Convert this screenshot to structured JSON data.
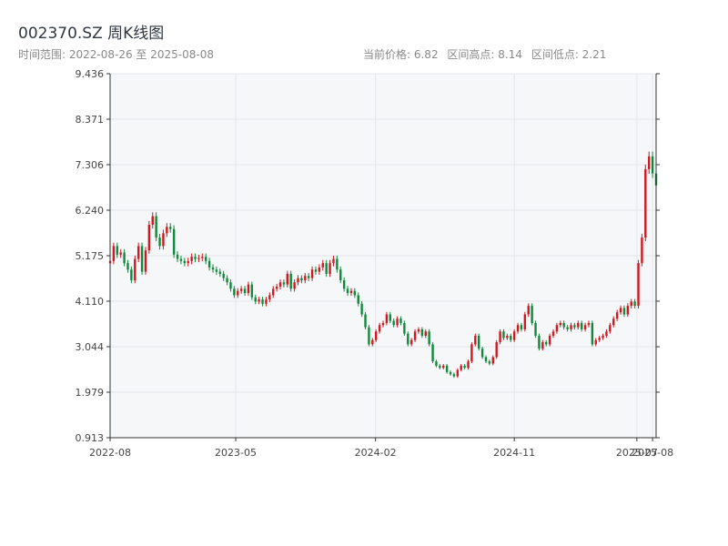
{
  "header": {
    "title": "002370.SZ 周K线图",
    "range_label": "时间范围: 2022-08-26 至 2025-08-08",
    "current_price": "当前价格: 6.82",
    "range_high": "区间高点: 8.14",
    "range_low": "区间低点: 2.21"
  },
  "colors": {
    "up": "#d0191f",
    "down": "#0f8a3c",
    "plot_bg": "#f6f7f9",
    "grid": "#e3e6ea",
    "axis": "#333333"
  },
  "chart_data": {
    "type": "candlestick",
    "title": "002370.SZ 周K线图",
    "ylim": [
      0.913,
      9.436
    ],
    "yticks": [
      "0.913",
      "1.979",
      "3.044",
      "4.110",
      "5.175",
      "6.240",
      "7.306",
      "8.371",
      "9.436"
    ],
    "xlim": [
      "2022-08-26",
      "2025-08-08"
    ],
    "xticks": [
      {
        "date": "2022-08-01",
        "label": "2022-08"
      },
      {
        "date": "2023-05-01",
        "label": "2023-05"
      },
      {
        "date": "2024-02-01",
        "label": "2024-02"
      },
      {
        "date": "2024-11-01",
        "label": "2024-11"
      },
      {
        "date": "2025-07-01",
        "label": "2025-07"
      },
      {
        "date": "2025-08-01",
        "label": "2025-08"
      }
    ],
    "grid": true,
    "points": [
      {
        "d": "2022-08-26",
        "c": 5.05
      },
      {
        "d": "2022-09-02",
        "c": 5.4
      },
      {
        "d": "2022-09-09",
        "c": 5.2
      },
      {
        "d": "2022-09-16",
        "c": 5.25
      },
      {
        "d": "2022-09-23",
        "c": 5.0
      },
      {
        "d": "2022-09-30",
        "c": 4.85
      },
      {
        "d": "2022-10-07",
        "c": 4.6
      },
      {
        "d": "2022-10-14",
        "c": 5.1
      },
      {
        "d": "2022-10-21",
        "c": 5.4
      },
      {
        "d": "2022-10-28",
        "c": 4.8
      },
      {
        "d": "2022-11-04",
        "c": 5.3
      },
      {
        "d": "2022-11-11",
        "c": 5.9
      },
      {
        "d": "2022-11-18",
        "c": 6.1
      },
      {
        "d": "2022-11-25",
        "c": 5.6
      },
      {
        "d": "2022-12-02",
        "c": 5.4
      },
      {
        "d": "2022-12-09",
        "c": 5.7
      },
      {
        "d": "2022-12-16",
        "c": 5.85
      },
      {
        "d": "2022-12-23",
        "c": 5.8
      },
      {
        "d": "2022-12-30",
        "c": 5.2
      },
      {
        "d": "2022-01-06",
        "c": null
      },
      {
        "d": "2023-01-06",
        "c": 5.1
      },
      {
        "d": "2023-01-13",
        "c": 5.05
      },
      {
        "d": "2023-01-20",
        "c": 5.0
      },
      {
        "d": "2023-01-27",
        "c": 5.05
      },
      {
        "d": "2023-02-03",
        "c": 5.15
      },
      {
        "d": "2023-02-10",
        "c": 5.1
      },
      {
        "d": "2023-02-17",
        "c": 5.12
      },
      {
        "d": "2023-02-24",
        "c": 5.15
      },
      {
        "d": "2023-03-03",
        "c": 5.05
      },
      {
        "d": "2023-03-10",
        "c": 4.9
      },
      {
        "d": "2023-03-17",
        "c": 4.85
      },
      {
        "d": "2023-03-24",
        "c": 4.8
      },
      {
        "d": "2023-03-31",
        "c": 4.75
      },
      {
        "d": "2023-04-07",
        "c": 4.65
      },
      {
        "d": "2023-04-14",
        "c": 4.55
      },
      {
        "d": "2023-04-21",
        "c": 4.4
      },
      {
        "d": "2023-04-28",
        "c": 4.25
      },
      {
        "d": "2023-05-05",
        "c": 4.35
      },
      {
        "d": "2023-05-12",
        "c": 4.4
      },
      {
        "d": "2023-05-19",
        "c": 4.3
      },
      {
        "d": "2023-05-26",
        "c": 4.5
      },
      {
        "d": "2023-06-02",
        "c": 4.2
      },
      {
        "d": "2023-06-09",
        "c": 4.1
      },
      {
        "d": "2023-06-16",
        "c": 4.15
      },
      {
        "d": "2023-06-23",
        "c": 4.05
      },
      {
        "d": "2023-06-30",
        "c": 4.15
      },
      {
        "d": "2023-07-07",
        "c": 4.25
      },
      {
        "d": "2023-07-14",
        "c": 4.4
      },
      {
        "d": "2023-07-21",
        "c": 4.45
      },
      {
        "d": "2023-07-28",
        "c": 4.55
      },
      {
        "d": "2023-08-04",
        "c": 4.5
      },
      {
        "d": "2023-08-11",
        "c": 4.75
      },
      {
        "d": "2023-08-18",
        "c": 4.4
      },
      {
        "d": "2023-08-25",
        "c": 4.55
      },
      {
        "d": "2023-09-01",
        "c": 4.65
      },
      {
        "d": "2023-09-08",
        "c": 4.6
      },
      {
        "d": "2023-09-15",
        "c": 4.7
      },
      {
        "d": "2023-09-22",
        "c": 4.65
      },
      {
        "d": "2023-09-29",
        "c": 4.85
      },
      {
        "d": "2023-10-06",
        "c": 4.8
      },
      {
        "d": "2023-10-13",
        "c": 4.9
      },
      {
        "d": "2023-10-20",
        "c": 5.0
      },
      {
        "d": "2023-10-27",
        "c": 4.75
      },
      {
        "d": "2023-11-03",
        "c": 5.0
      },
      {
        "d": "2023-11-10",
        "c": 5.1
      },
      {
        "d": "2023-11-17",
        "c": 4.85
      },
      {
        "d": "2023-11-24",
        "c": 4.6
      },
      {
        "d": "2023-12-01",
        "c": 4.4
      },
      {
        "d": "2023-12-08",
        "c": 4.3
      },
      {
        "d": "2023-12-15",
        "c": 4.35
      },
      {
        "d": "2023-12-22",
        "c": 4.25
      },
      {
        "d": "2023-12-29",
        "c": 4.05
      },
      {
        "d": "2024-01-05",
        "c": 3.8
      },
      {
        "d": "2024-01-12",
        "c": 3.5
      },
      {
        "d": "2024-01-19",
        "c": 3.1
      },
      {
        "d": "2024-01-26",
        "c": 3.2
      },
      {
        "d": "2024-02-02",
        "c": 3.4
      },
      {
        "d": "2024-02-09",
        "c": 3.55
      },
      {
        "d": "2024-02-16",
        "c": 3.6
      },
      {
        "d": "2024-02-23",
        "c": 3.8
      },
      {
        "d": "2024-03-01",
        "c": 3.65
      },
      {
        "d": "2024-03-08",
        "c": 3.55
      },
      {
        "d": "2024-03-15",
        "c": 3.7
      },
      {
        "d": "2024-03-22",
        "c": 3.6
      },
      {
        "d": "2024-03-29",
        "c": 3.35
      },
      {
        "d": "2024-04-05",
        "c": 3.1
      },
      {
        "d": "2024-04-12",
        "c": 3.2
      },
      {
        "d": "2024-04-19",
        "c": 3.4
      },
      {
        "d": "2024-04-26",
        "c": 3.45
      },
      {
        "d": "2024-05-03",
        "c": 3.3
      },
      {
        "d": "2024-05-10",
        "c": 3.4
      },
      {
        "d": "2024-05-17",
        "c": 3.1
      },
      {
        "d": "2024-05-24",
        "c": 2.7
      },
      {
        "d": "2024-05-31",
        "c": 2.6
      },
      {
        "d": "2024-06-07",
        "c": 2.55
      },
      {
        "d": "2024-06-14",
        "c": 2.6
      },
      {
        "d": "2024-06-21",
        "c": 2.45
      },
      {
        "d": "2024-06-28",
        "c": 2.4
      },
      {
        "d": "2024-07-05",
        "c": 2.35
      },
      {
        "d": "2024-07-12",
        "c": 2.5
      },
      {
        "d": "2024-07-19",
        "c": 2.6
      },
      {
        "d": "2024-07-26",
        "c": 2.55
      },
      {
        "d": "2024-08-02",
        "c": 2.7
      },
      {
        "d": "2024-08-09",
        "c": 3.1
      },
      {
        "d": "2024-08-16",
        "c": 3.3
      },
      {
        "d": "2024-08-23",
        "c": 3.0
      },
      {
        "d": "2024-08-30",
        "c": 2.8
      },
      {
        "d": "2024-09-06",
        "c": 2.7
      },
      {
        "d": "2024-09-13",
        "c": 2.65
      },
      {
        "d": "2024-09-20",
        "c": 2.8
      },
      {
        "d": "2024-09-27",
        "c": 3.15
      },
      {
        "d": "2024-10-04",
        "c": 3.4
      },
      {
        "d": "2024-10-11",
        "c": 3.25
      },
      {
        "d": "2024-10-18",
        "c": 3.3
      },
      {
        "d": "2024-10-25",
        "c": 3.2
      },
      {
        "d": "2024-11-01",
        "c": 3.4
      },
      {
        "d": "2024-11-08",
        "c": 3.55
      },
      {
        "d": "2024-11-15",
        "c": 3.45
      },
      {
        "d": "2024-11-22",
        "c": 3.8
      },
      {
        "d": "2024-11-29",
        "c": 4.0
      },
      {
        "d": "2024-12-06",
        "c": 3.6
      },
      {
        "d": "2024-12-13",
        "c": 3.3
      },
      {
        "d": "2024-12-20",
        "c": 3.0
      },
      {
        "d": "2024-12-27",
        "c": 3.15
      },
      {
        "d": "2025-01-03",
        "c": 3.1
      },
      {
        "d": "2025-01-10",
        "c": 3.3
      },
      {
        "d": "2025-01-17",
        "c": 3.4
      },
      {
        "d": "2025-01-24",
        "c": 3.55
      },
      {
        "d": "2025-01-31",
        "c": 3.6
      },
      {
        "d": "2025-02-07",
        "c": 3.5
      },
      {
        "d": "2025-02-14",
        "c": 3.45
      },
      {
        "d": "2025-02-21",
        "c": 3.55
      },
      {
        "d": "2025-02-28",
        "c": 3.5
      },
      {
        "d": "2025-03-07",
        "c": 3.6
      },
      {
        "d": "2025-03-14",
        "c": 3.45
      },
      {
        "d": "2025-03-21",
        "c": 3.55
      },
      {
        "d": "2025-03-28",
        "c": 3.6
      },
      {
        "d": "2025-04-04",
        "c": 3.1
      },
      {
        "d": "2025-04-11",
        "c": 3.2
      },
      {
        "d": "2025-04-18",
        "c": 3.25
      },
      {
        "d": "2025-04-25",
        "c": 3.3
      },
      {
        "d": "2025-05-02",
        "c": 3.4
      },
      {
        "d": "2025-05-09",
        "c": 3.55
      },
      {
        "d": "2025-05-16",
        "c": 3.7
      },
      {
        "d": "2025-05-23",
        "c": 3.85
      },
      {
        "d": "2025-05-30",
        "c": 3.95
      },
      {
        "d": "2025-06-06",
        "c": 3.8
      },
      {
        "d": "2025-06-13",
        "c": 4.0
      },
      {
        "d": "2025-06-20",
        "c": 4.1
      },
      {
        "d": "2025-06-27",
        "c": 4.0
      },
      {
        "d": "2025-07-04",
        "c": 5.0
      },
      {
        "d": "2025-07-11",
        "c": 5.6
      },
      {
        "d": "2025-07-18",
        "c": 7.2
      },
      {
        "d": "2025-07-25",
        "c": 7.5
      },
      {
        "d": "2025-08-01",
        "c": 7.1
      },
      {
        "d": "2025-08-08",
        "c": 6.82
      }
    ]
  }
}
